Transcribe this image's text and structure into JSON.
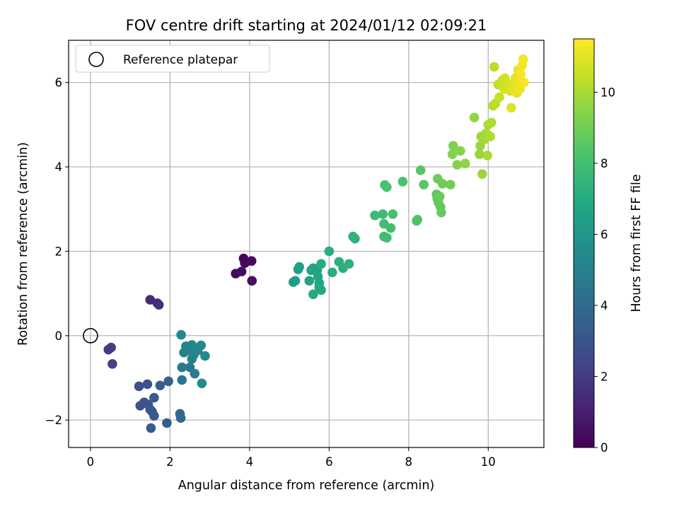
{
  "chart_data": {
    "type": "scatter",
    "title": "FOV centre drift starting at 2024/01/12 02:09:21",
    "xlabel": "Angular distance from reference (arcmin)",
    "ylabel": "Rotation from reference (arcmin)",
    "xlim": [
      -0.55,
      11.4
    ],
    "ylim": [
      -2.65,
      7.0
    ],
    "xticks": [
      0,
      2,
      4,
      6,
      8,
      10
    ],
    "yticks": [
      -2,
      0,
      2,
      4,
      6
    ],
    "xtick_labels": [
      "0",
      "2",
      "4",
      "6",
      "8",
      "10"
    ],
    "ytick_labels": [
      "−2",
      "0",
      "2",
      "4",
      "6"
    ],
    "grid": true,
    "legend": {
      "placement": "upper-left",
      "entries": [
        {
          "label": "Reference platepar",
          "marker": "open-circle",
          "x": 0,
          "y": 0
        }
      ]
    },
    "colorbar": {
      "label": "Hours from first FF file",
      "colormap": "viridis",
      "range": [
        0,
        11.5
      ],
      "ticks": [
        0,
        2,
        4,
        6,
        8,
        10
      ],
      "tick_labels": [
        "0",
        "2",
        "4",
        "6",
        "8",
        "10"
      ]
    },
    "points": [
      {
        "x": 3.85,
        "y": 1.83,
        "c": 0.1
      },
      {
        "x": 3.88,
        "y": 1.72,
        "c": 0.2
      },
      {
        "x": 4.05,
        "y": 1.77,
        "c": 0.3
      },
      {
        "x": 3.65,
        "y": 1.47,
        "c": 0.3
      },
      {
        "x": 3.8,
        "y": 1.52,
        "c": 0.4
      },
      {
        "x": 4.06,
        "y": 1.3,
        "c": 0.5
      },
      {
        "x": 1.5,
        "y": 0.85,
        "c": 1.3
      },
      {
        "x": 1.68,
        "y": 0.77,
        "c": 1.4
      },
      {
        "x": 1.72,
        "y": 0.73,
        "c": 1.5
      },
      {
        "x": 0.45,
        "y": -0.33,
        "c": 2.0
      },
      {
        "x": 0.52,
        "y": -0.28,
        "c": 2.1
      },
      {
        "x": 0.55,
        "y": -0.67,
        "c": 2.2
      },
      {
        "x": 1.22,
        "y": -1.2,
        "c": 2.8
      },
      {
        "x": 1.43,
        "y": -1.15,
        "c": 2.9
      },
      {
        "x": 1.25,
        "y": -1.66,
        "c": 3.0
      },
      {
        "x": 1.35,
        "y": -1.58,
        "c": 3.0
      },
      {
        "x": 1.45,
        "y": -1.63,
        "c": 3.1
      },
      {
        "x": 1.5,
        "y": -1.75,
        "c": 3.1
      },
      {
        "x": 1.55,
        "y": -1.8,
        "c": 3.2
      },
      {
        "x": 1.6,
        "y": -1.9,
        "c": 3.2
      },
      {
        "x": 1.52,
        "y": -2.19,
        "c": 3.3
      },
      {
        "x": 1.92,
        "y": -2.07,
        "c": 3.4
      },
      {
        "x": 1.6,
        "y": -1.47,
        "c": 3.4
      },
      {
        "x": 1.75,
        "y": -1.18,
        "c": 3.5
      },
      {
        "x": 1.96,
        "y": -1.08,
        "c": 3.6
      },
      {
        "x": 2.25,
        "y": -1.85,
        "c": 3.9
      },
      {
        "x": 2.27,
        "y": -1.95,
        "c": 3.9
      },
      {
        "x": 2.3,
        "y": -1.05,
        "c": 4.5
      },
      {
        "x": 2.3,
        "y": -0.75,
        "c": 4.6
      },
      {
        "x": 2.5,
        "y": -0.75,
        "c": 4.7
      },
      {
        "x": 2.62,
        "y": -0.9,
        "c": 4.8
      },
      {
        "x": 2.55,
        "y": -0.55,
        "c": 4.9
      },
      {
        "x": 2.6,
        "y": -0.45,
        "c": 5.0
      },
      {
        "x": 2.35,
        "y": -0.4,
        "c": 5.0
      },
      {
        "x": 2.45,
        "y": -0.3,
        "c": 5.1
      },
      {
        "x": 2.4,
        "y": -0.25,
        "c": 5.1
      },
      {
        "x": 2.55,
        "y": -0.22,
        "c": 5.2
      },
      {
        "x": 2.65,
        "y": -0.3,
        "c": 5.2
      },
      {
        "x": 2.7,
        "y": -0.35,
        "c": 5.3
      },
      {
        "x": 2.78,
        "y": -0.23,
        "c": 5.3
      },
      {
        "x": 2.88,
        "y": -0.48,
        "c": 5.4
      },
      {
        "x": 2.8,
        "y": -1.13,
        "c": 5.4
      },
      {
        "x": 2.28,
        "y": 0.02,
        "c": 5.3
      },
      {
        "x": 2.5,
        "y": -0.35,
        "c": 5.2
      },
      {
        "x": 5.1,
        "y": 1.27,
        "c": 6.4
      },
      {
        "x": 5.15,
        "y": 1.3,
        "c": 6.4
      },
      {
        "x": 5.22,
        "y": 1.57,
        "c": 6.5
      },
      {
        "x": 5.25,
        "y": 1.63,
        "c": 6.5
      },
      {
        "x": 5.5,
        "y": 1.3,
        "c": 6.6
      },
      {
        "x": 5.55,
        "y": 1.55,
        "c": 6.6
      },
      {
        "x": 5.6,
        "y": 1.6,
        "c": 6.7
      },
      {
        "x": 5.7,
        "y": 1.55,
        "c": 6.7
      },
      {
        "x": 5.72,
        "y": 1.4,
        "c": 6.8
      },
      {
        "x": 5.75,
        "y": 1.25,
        "c": 6.8
      },
      {
        "x": 5.75,
        "y": 1.15,
        "c": 6.9
      },
      {
        "x": 5.8,
        "y": 1.08,
        "c": 6.9
      },
      {
        "x": 5.6,
        "y": 0.98,
        "c": 7.0
      },
      {
        "x": 5.8,
        "y": 1.7,
        "c": 7.0
      },
      {
        "x": 6.0,
        "y": 2.0,
        "c": 7.1
      },
      {
        "x": 6.08,
        "y": 1.5,
        "c": 7.1
      },
      {
        "x": 6.25,
        "y": 1.75,
        "c": 7.2
      },
      {
        "x": 6.35,
        "y": 1.6,
        "c": 7.2
      },
      {
        "x": 6.5,
        "y": 1.7,
        "c": 7.3
      },
      {
        "x": 6.6,
        "y": 2.35,
        "c": 7.4
      },
      {
        "x": 6.65,
        "y": 2.3,
        "c": 7.4
      },
      {
        "x": 7.15,
        "y": 2.85,
        "c": 7.8
      },
      {
        "x": 7.35,
        "y": 2.88,
        "c": 7.8
      },
      {
        "x": 7.38,
        "y": 2.65,
        "c": 7.9
      },
      {
        "x": 7.38,
        "y": 2.35,
        "c": 7.9
      },
      {
        "x": 7.45,
        "y": 2.32,
        "c": 8.0
      },
      {
        "x": 7.55,
        "y": 2.55,
        "c": 8.0
      },
      {
        "x": 7.6,
        "y": 2.88,
        "c": 8.1
      },
      {
        "x": 7.4,
        "y": 3.57,
        "c": 8.1
      },
      {
        "x": 7.45,
        "y": 3.52,
        "c": 8.2
      },
      {
        "x": 7.85,
        "y": 3.65,
        "c": 8.2
      },
      {
        "x": 8.2,
        "y": 2.72,
        "c": 8.3
      },
      {
        "x": 8.22,
        "y": 2.75,
        "c": 8.3
      },
      {
        "x": 8.3,
        "y": 3.92,
        "c": 8.4
      },
      {
        "x": 8.38,
        "y": 3.58,
        "c": 8.5
      },
      {
        "x": 8.7,
        "y": 3.35,
        "c": 8.6
      },
      {
        "x": 8.72,
        "y": 3.25,
        "c": 8.6
      },
      {
        "x": 8.75,
        "y": 3.15,
        "c": 8.7
      },
      {
        "x": 8.8,
        "y": 3.05,
        "c": 8.7
      },
      {
        "x": 8.82,
        "y": 2.92,
        "c": 8.8
      },
      {
        "x": 8.78,
        "y": 3.3,
        "c": 8.8
      },
      {
        "x": 8.73,
        "y": 3.72,
        "c": 8.9
      },
      {
        "x": 8.85,
        "y": 3.6,
        "c": 8.9
      },
      {
        "x": 9.05,
        "y": 3.58,
        "c": 9.0
      },
      {
        "x": 9.1,
        "y": 4.3,
        "c": 9.3
      },
      {
        "x": 9.12,
        "y": 4.5,
        "c": 9.3
      },
      {
        "x": 9.22,
        "y": 4.05,
        "c": 9.4
      },
      {
        "x": 9.3,
        "y": 4.38,
        "c": 9.4
      },
      {
        "x": 9.42,
        "y": 4.08,
        "c": 9.5
      },
      {
        "x": 9.65,
        "y": 5.17,
        "c": 9.6
      },
      {
        "x": 9.78,
        "y": 4.3,
        "c": 9.7
      },
      {
        "x": 9.8,
        "y": 4.5,
        "c": 9.7
      },
      {
        "x": 9.82,
        "y": 4.72,
        "c": 9.8
      },
      {
        "x": 9.85,
        "y": 3.83,
        "c": 9.8
      },
      {
        "x": 9.9,
        "y": 4.65,
        "c": 9.9
      },
      {
        "x": 9.95,
        "y": 4.8,
        "c": 9.9
      },
      {
        "x": 9.98,
        "y": 4.27,
        "c": 10.0
      },
      {
        "x": 10.0,
        "y": 5.0,
        "c": 10.0
      },
      {
        "x": 10.05,
        "y": 4.72,
        "c": 10.1
      },
      {
        "x": 10.08,
        "y": 5.05,
        "c": 10.1
      },
      {
        "x": 10.12,
        "y": 5.45,
        "c": 10.2
      },
      {
        "x": 10.18,
        "y": 5.5,
        "c": 10.3
      },
      {
        "x": 10.15,
        "y": 6.37,
        "c": 10.3
      },
      {
        "x": 10.25,
        "y": 5.95,
        "c": 10.4
      },
      {
        "x": 10.28,
        "y": 5.65,
        "c": 10.5
      },
      {
        "x": 10.35,
        "y": 6.05,
        "c": 10.6
      },
      {
        "x": 10.4,
        "y": 5.85,
        "c": 10.7
      },
      {
        "x": 10.42,
        "y": 6.1,
        "c": 10.7
      },
      {
        "x": 10.5,
        "y": 5.95,
        "c": 10.8
      },
      {
        "x": 10.55,
        "y": 5.8,
        "c": 10.8
      },
      {
        "x": 10.58,
        "y": 5.4,
        "c": 10.9
      },
      {
        "x": 10.62,
        "y": 5.9,
        "c": 11.0
      },
      {
        "x": 10.68,
        "y": 6.1,
        "c": 11.0
      },
      {
        "x": 10.72,
        "y": 5.75,
        "c": 11.1
      },
      {
        "x": 10.75,
        "y": 6.3,
        "c": 11.1
      },
      {
        "x": 10.78,
        "y": 6.0,
        "c": 11.2
      },
      {
        "x": 10.8,
        "y": 5.85,
        "c": 11.2
      },
      {
        "x": 10.85,
        "y": 6.4,
        "c": 11.3
      },
      {
        "x": 10.88,
        "y": 6.55,
        "c": 11.3
      },
      {
        "x": 10.82,
        "y": 6.2,
        "c": 11.4
      },
      {
        "x": 10.9,
        "y": 6.0,
        "c": 11.4
      }
    ]
  }
}
